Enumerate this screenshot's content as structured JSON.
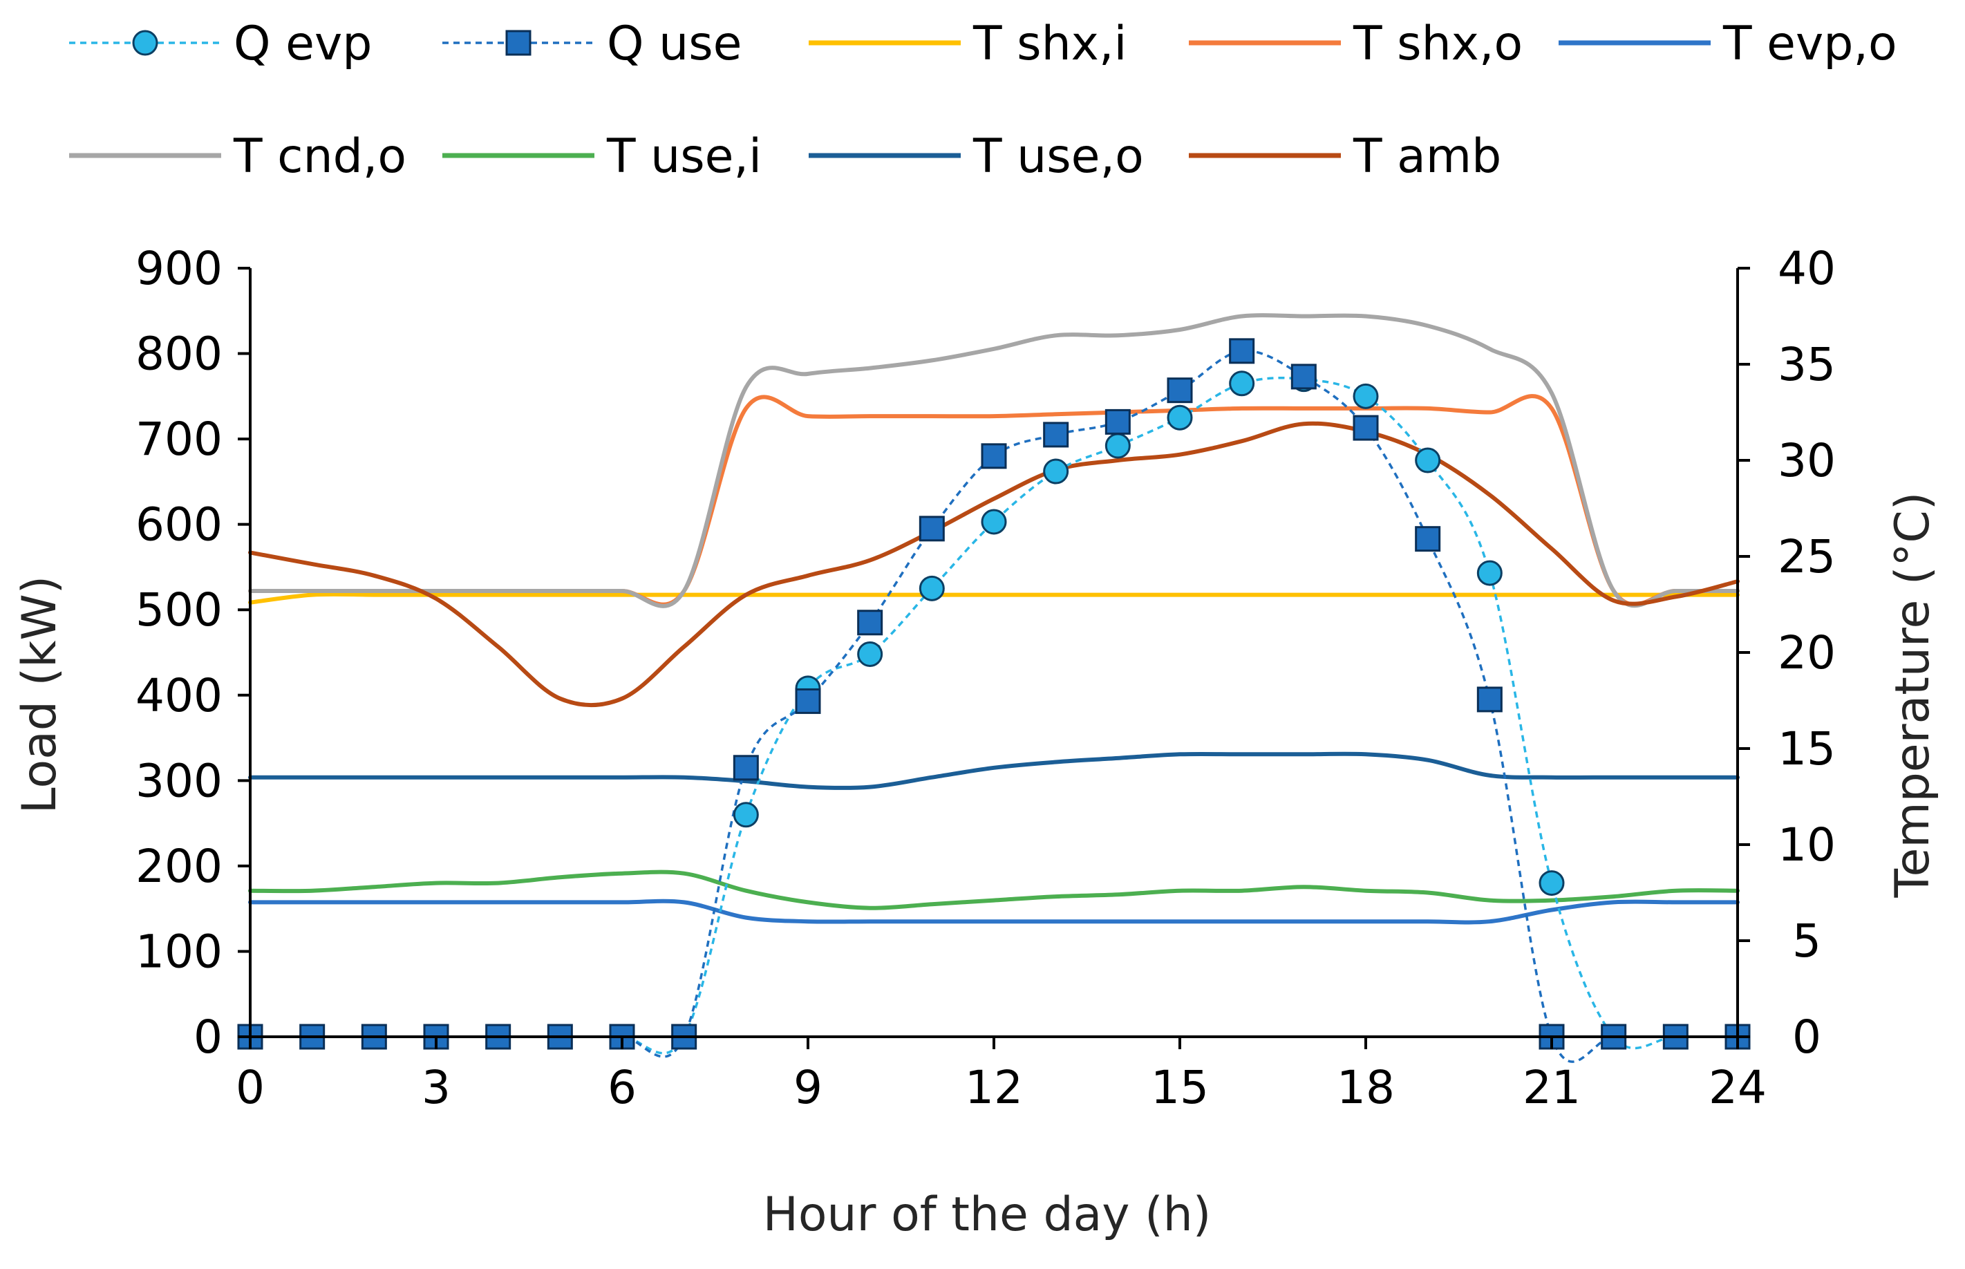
{
  "chart_data": {
    "type": "line",
    "title": "",
    "xlabel": "Hour of the day (h)",
    "ylabel": "Load (kW)",
    "y2label": "Temperature (°C)",
    "xlim": [
      0,
      24
    ],
    "ylim": [
      0,
      900
    ],
    "y2lim": [
      0,
      40
    ],
    "xticks": [
      0,
      3,
      6,
      9,
      12,
      15,
      18,
      21,
      24
    ],
    "yticks": [
      0,
      100,
      200,
      300,
      400,
      500,
      600,
      700,
      800,
      900
    ],
    "y2ticks": [
      0,
      5,
      10,
      15,
      20,
      25,
      30,
      35,
      40
    ],
    "legend_position": "top",
    "x": [
      0,
      1,
      2,
      3,
      4,
      5,
      6,
      7,
      8,
      9,
      10,
      11,
      12,
      13,
      14,
      15,
      16,
      17,
      18,
      19,
      20,
      21,
      22,
      23,
      24
    ],
    "load_series": [
      {
        "name": "Q evp",
        "color": "#29B6E6",
        "marker": "circle",
        "values": [
          0,
          0,
          0,
          0,
          0,
          0,
          0,
          0,
          260,
          408,
          448,
          525,
          603,
          662,
          692,
          725,
          765,
          770,
          750,
          675,
          543,
          180,
          0,
          0,
          0
        ]
      },
      {
        "name": "Q use",
        "color": "#1F6FBF",
        "marker": "square",
        "values": [
          0,
          0,
          0,
          0,
          0,
          0,
          0,
          0,
          315,
          393,
          485,
          595,
          680,
          705,
          720,
          757,
          803,
          773,
          713,
          583,
          395,
          0,
          0,
          0,
          0
        ]
      }
    ],
    "temperature_series": [
      {
        "name": "T shx,i",
        "color": "#FFC000",
        "values": [
          22.6,
          23.0,
          23.0,
          23.0,
          23.0,
          23.0,
          23.0,
          23.0,
          23.0,
          23.0,
          23.0,
          23.0,
          23.0,
          23.0,
          23.0,
          23.0,
          23.0,
          23.0,
          23.0,
          23.0,
          23.0,
          23.0,
          23.0,
          23.0,
          23.0
        ]
      },
      {
        "name": "T shx,o",
        "color": "#F47B3C",
        "values": [
          23.2,
          23.2,
          23.2,
          23.2,
          23.2,
          23.2,
          23.2,
          23.2,
          32.7,
          32.3,
          32.3,
          32.3,
          32.3,
          32.4,
          32.5,
          32.6,
          32.7,
          32.7,
          32.7,
          32.7,
          32.5,
          32.7,
          23.2,
          23.2,
          23.2
        ]
      },
      {
        "name": "T evp,o",
        "color": "#2E75C8",
        "values": [
          7.0,
          7.0,
          7.0,
          7.0,
          7.0,
          7.0,
          7.0,
          7.0,
          6.2,
          6.0,
          6.0,
          6.0,
          6.0,
          6.0,
          6.0,
          6.0,
          6.0,
          6.0,
          6.0,
          6.0,
          6.0,
          6.6,
          7.0,
          7.0,
          7.0
        ]
      },
      {
        "name": "T cnd,o",
        "color": "#A6A6A6",
        "values": [
          23.2,
          23.2,
          23.2,
          23.2,
          23.2,
          23.2,
          23.2,
          23.2,
          33.8,
          34.5,
          34.8,
          35.2,
          35.8,
          36.5,
          36.5,
          36.8,
          37.5,
          37.5,
          37.5,
          37.0,
          35.8,
          33.5,
          23.2,
          23.2,
          23.2
        ]
      },
      {
        "name": "T use,i",
        "color": "#4CAF50",
        "values": [
          7.6,
          7.6,
          7.8,
          8.0,
          8.0,
          8.3,
          8.5,
          8.5,
          7.6,
          7.0,
          6.7,
          6.9,
          7.1,
          7.3,
          7.4,
          7.6,
          7.6,
          7.8,
          7.6,
          7.5,
          7.1,
          7.1,
          7.3,
          7.6,
          7.6
        ]
      },
      {
        "name": "T use,o",
        "color": "#1B5E96",
        "values": [
          13.5,
          13.5,
          13.5,
          13.5,
          13.5,
          13.5,
          13.5,
          13.5,
          13.3,
          13.0,
          13.0,
          13.5,
          14.0,
          14.3,
          14.5,
          14.7,
          14.7,
          14.7,
          14.7,
          14.4,
          13.6,
          13.5,
          13.5,
          13.5,
          13.5
        ]
      },
      {
        "name": "T amb",
        "color": "#B84A14",
        "values": [
          25.2,
          24.6,
          24.0,
          22.8,
          20.3,
          17.6,
          17.6,
          20.3,
          23.0,
          24.0,
          24.8,
          26.3,
          28.0,
          29.5,
          30.0,
          30.3,
          31.0,
          31.9,
          31.5,
          30.3,
          28.2,
          25.4,
          22.7,
          22.9,
          23.7
        ]
      }
    ]
  }
}
